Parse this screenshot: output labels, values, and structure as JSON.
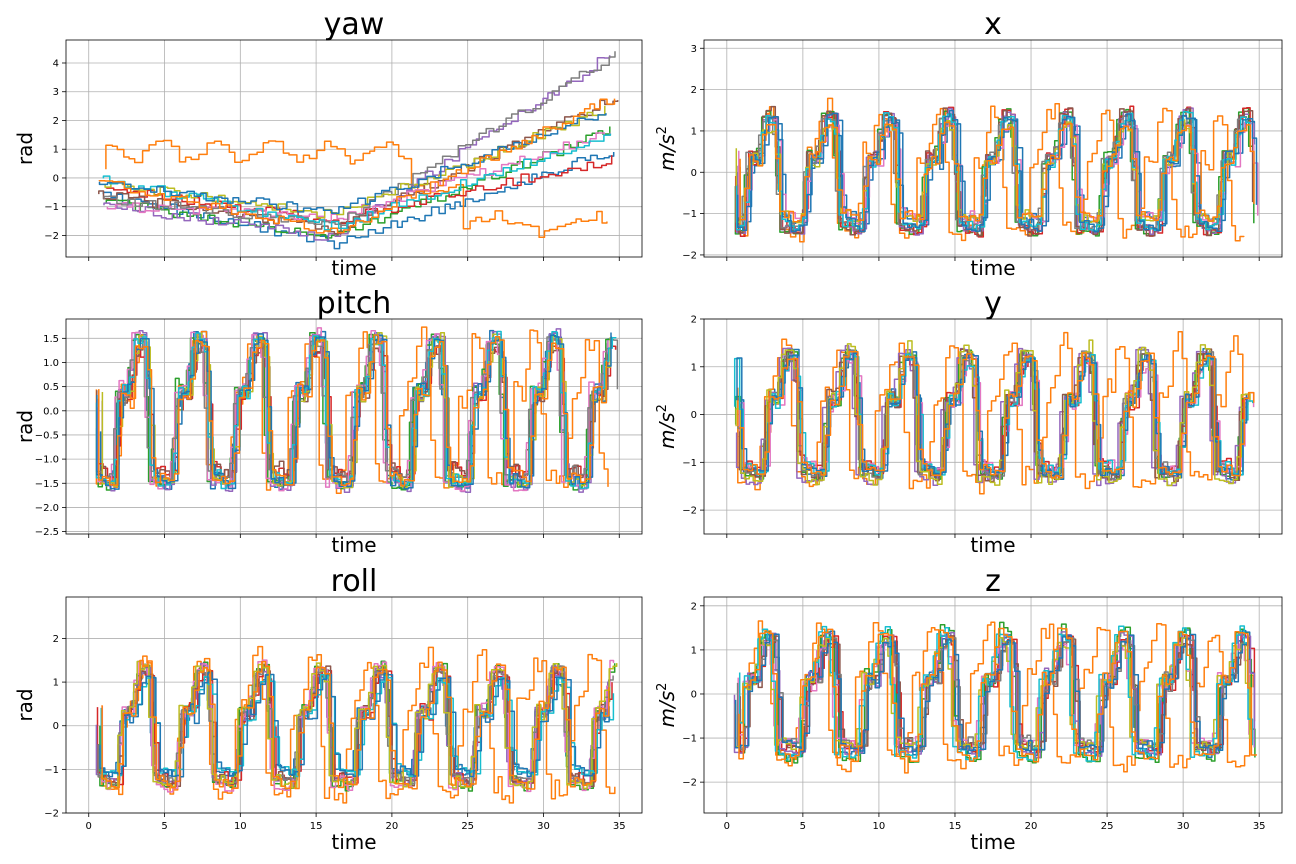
{
  "palette": [
    "#1f77b4",
    "#ff7f0e",
    "#2ca02c",
    "#d62728",
    "#9467bd",
    "#8c564b",
    "#e377c2",
    "#7f7f7f",
    "#bcbd22",
    "#17becf"
  ],
  "series_count": 12,
  "chart_data": [
    {
      "id": "yaw",
      "type": "line",
      "title": "yaw",
      "xlabel": "time",
      "ylabel": "rad",
      "ylabel_math": false,
      "xlim": [
        -1.5,
        36.5
      ],
      "ylim": [
        -2.75,
        4.8
      ],
      "xticks": [
        0,
        5,
        10,
        15,
        20,
        25,
        30,
        35
      ],
      "show_xtick_labels": false,
      "yticks": [
        -2,
        -1,
        0,
        1,
        2,
        3,
        4
      ],
      "ytick_labels": [
        "−2",
        "−1",
        "0",
        "1",
        "2",
        "3",
        "4"
      ],
      "grid": true,
      "trend": "drift"
    },
    {
      "id": "x",
      "type": "line",
      "title": "x",
      "xlabel": "time",
      "ylabel": "m/s",
      "ylabel_math": true,
      "ylabel_exp": "2",
      "xlim": [
        -1.5,
        36.5
      ],
      "ylim": [
        -2.05,
        3.2
      ],
      "xticks": [
        0,
        5,
        10,
        15,
        20,
        25,
        30,
        35
      ],
      "show_xtick_labels": false,
      "yticks": [
        -2,
        -1,
        0,
        1,
        2,
        3
      ],
      "ytick_labels": [
        "−2",
        "−1",
        "0",
        "1",
        "2",
        "3"
      ],
      "grid": true,
      "trend": "square",
      "amplitude": 1.3,
      "period": 3.9,
      "phase": 0.4
    },
    {
      "id": "pitch",
      "type": "line",
      "title": "pitch",
      "xlabel": "time",
      "ylabel": "rad",
      "ylabel_math": false,
      "xlim": [
        -1.5,
        36.5
      ],
      "ylim": [
        -2.55,
        1.9
      ],
      "xticks": [
        0,
        5,
        10,
        15,
        20,
        25,
        30,
        35
      ],
      "show_xtick_labels": false,
      "yticks": [
        -2.5,
        -2.0,
        -1.5,
        -1.0,
        -0.5,
        0.0,
        0.5,
        1.0,
        1.5
      ],
      "ytick_labels": [
        "−2.5",
        "−2.0",
        "−1.5",
        "−1.0",
        "−0.5",
        "0.0",
        "0.5",
        "1.0",
        "1.5"
      ],
      "grid": true,
      "trend": "square",
      "amplitude": 1.4,
      "period": 3.9,
      "phase": 0.9
    },
    {
      "id": "y",
      "type": "line",
      "title": "y",
      "xlabel": "time",
      "ylabel": "m/s",
      "ylabel_math": true,
      "ylabel_exp": "2",
      "xlim": [
        -1.5,
        36.5
      ],
      "ylim": [
        -2.5,
        2.0
      ],
      "xticks": [
        0,
        5,
        10,
        15,
        20,
        25,
        30,
        35
      ],
      "show_xtick_labels": false,
      "yticks": [
        -2,
        -1,
        0,
        1,
        2
      ],
      "ytick_labels": [
        "−2",
        "−1",
        "0",
        "1",
        "2"
      ],
      "grid": true,
      "trend": "square",
      "amplitude": 1.3,
      "period": 3.9,
      "phase": 1.6
    },
    {
      "id": "roll",
      "type": "line",
      "title": "roll",
      "xlabel": "time",
      "ylabel": "rad",
      "ylabel_math": false,
      "xlim": [
        -1.5,
        36.5
      ],
      "ylim": [
        -2.0,
        2.95
      ],
      "xticks": [
        0,
        5,
        10,
        15,
        20,
        25,
        30,
        35
      ],
      "show_xtick_labels": true,
      "xtick_labels": [
        "0",
        "5",
        "10",
        "15",
        "20",
        "25",
        "30",
        "35"
      ],
      "yticks": [
        -2,
        -1,
        0,
        1,
        2
      ],
      "ytick_labels": [
        "−2",
        "−1",
        "0",
        "1",
        "2"
      ],
      "grid": true,
      "trend": "square",
      "amplitude": 1.25,
      "period": 3.9,
      "phase": 1.2
    },
    {
      "id": "z",
      "type": "line",
      "title": "z",
      "xlabel": "time",
      "ylabel": "m/s",
      "ylabel_math": true,
      "ylabel_exp": "2",
      "xlim": [
        -1.5,
        36.5
      ],
      "ylim": [
        -2.7,
        2.2
      ],
      "xticks": [
        0,
        5,
        10,
        15,
        20,
        25,
        30,
        35
      ],
      "show_xtick_labels": true,
      "xtick_labels": [
        "0",
        "5",
        "10",
        "15",
        "20",
        "25",
        "30",
        "35"
      ],
      "yticks": [
        -2,
        -1,
        0,
        1,
        2
      ],
      "ytick_labels": [
        "−2",
        "−1",
        "0",
        "1",
        "2"
      ],
      "grid": true,
      "trend": "square",
      "amplitude": 1.3,
      "period": 3.9,
      "phase": 0.2
    }
  ]
}
